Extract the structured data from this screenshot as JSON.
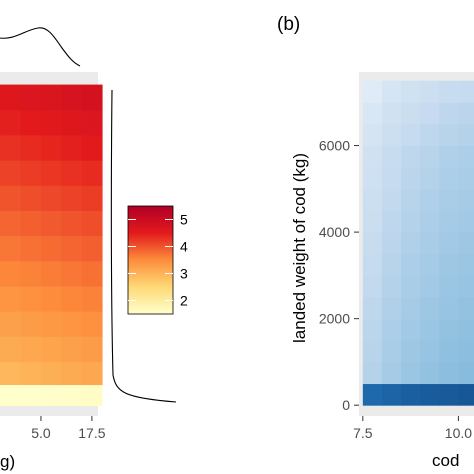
{
  "panel_b_label": "(b)",
  "chart_data": [
    {
      "type": "heatmap",
      "panel": "(a)",
      "palette": "YlOrRd",
      "x_ticks": [
        "5.0",
        "17.5"
      ],
      "xlabel_fragment": "g)",
      "xlim": [
        12.5,
        17.8
      ],
      "ylim": [
        -0.4,
        7.8
      ],
      "x_columns": [
        12.5,
        13.5,
        14.5,
        15.5,
        16.5,
        17.5
      ],
      "row_centers": [
        0.1,
        0.6,
        1.2,
        1.8,
        2.4,
        3.0,
        3.6,
        4.2,
        4.8,
        5.4,
        6.0,
        6.6,
        7.2
      ],
      "values": [
        [
          1.5,
          1.5,
          1.5,
          1.52,
          1.55,
          1.58
        ],
        [
          2.9,
          2.95,
          3.0,
          3.05,
          3.1,
          3.15
        ],
        [
          3.05,
          3.1,
          3.15,
          3.2,
          3.25,
          3.3
        ],
        [
          3.2,
          3.25,
          3.3,
          3.35,
          3.4,
          3.45
        ],
        [
          3.35,
          3.4,
          3.45,
          3.5,
          3.55,
          3.6
        ],
        [
          3.5,
          3.55,
          3.6,
          3.65,
          3.7,
          3.75
        ],
        [
          3.65,
          3.7,
          3.75,
          3.8,
          3.85,
          3.9
        ],
        [
          3.8,
          3.85,
          3.9,
          3.95,
          4.0,
          4.05
        ],
        [
          3.95,
          4.0,
          4.05,
          4.1,
          4.15,
          4.2
        ],
        [
          4.1,
          4.15,
          4.2,
          4.25,
          4.3,
          4.35
        ],
        [
          4.25,
          4.3,
          4.35,
          4.4,
          4.45,
          4.5
        ],
        [
          4.4,
          4.45,
          4.5,
          4.55,
          4.6,
          4.65
        ],
        [
          4.55,
          4.6,
          4.65,
          4.7,
          4.75,
          4.8
        ]
      ],
      "legend": {
        "ticks": [
          "2",
          "3",
          "4",
          "5"
        ],
        "min": 1.5,
        "max": 5.5
      },
      "grid": false
    },
    {
      "type": "heatmap",
      "panel": "(b)",
      "palette": "Blues",
      "ylabel": "landed weight of cod (kg)",
      "xlabel_fragment": "cod",
      "x_ticks": [
        "7.5",
        "10.0"
      ],
      "y_ticks": [
        "0",
        "2000",
        "4000",
        "6000"
      ],
      "xlim": [
        7.4,
        10.8
      ],
      "ylim": [
        -250,
        7700
      ],
      "x_columns": [
        7.75,
        8.25,
        8.75,
        9.25,
        9.75,
        10.25,
        10.75
      ],
      "row_centers": [
        250,
        750,
        1250,
        1750,
        2250,
        2750,
        3250,
        3750,
        4250,
        4750,
        5250,
        5750,
        6250,
        6750,
        7250
      ],
      "values": [
        [
          0.78,
          0.8,
          0.82,
          0.83,
          0.84,
          0.85,
          0.86
        ],
        [
          0.3,
          0.34,
          0.37,
          0.39,
          0.41,
          0.42,
          0.43
        ],
        [
          0.29,
          0.33,
          0.36,
          0.38,
          0.4,
          0.41,
          0.42
        ],
        [
          0.28,
          0.32,
          0.35,
          0.37,
          0.39,
          0.4,
          0.41
        ],
        [
          0.27,
          0.31,
          0.34,
          0.36,
          0.38,
          0.39,
          0.4
        ],
        [
          0.26,
          0.3,
          0.33,
          0.35,
          0.37,
          0.38,
          0.39
        ],
        [
          0.25,
          0.29,
          0.32,
          0.34,
          0.36,
          0.37,
          0.38
        ],
        [
          0.24,
          0.28,
          0.31,
          0.33,
          0.35,
          0.36,
          0.37
        ],
        [
          0.23,
          0.27,
          0.3,
          0.32,
          0.34,
          0.35,
          0.36
        ],
        [
          0.22,
          0.26,
          0.29,
          0.31,
          0.33,
          0.34,
          0.35
        ],
        [
          0.21,
          0.25,
          0.28,
          0.3,
          0.32,
          0.33,
          0.34
        ],
        [
          0.2,
          0.24,
          0.27,
          0.29,
          0.31,
          0.32,
          0.33
        ],
        [
          0.18,
          0.22,
          0.25,
          0.27,
          0.29,
          0.3,
          0.31
        ],
        [
          0.16,
          0.2,
          0.23,
          0.25,
          0.27,
          0.28,
          0.29
        ],
        [
          0.12,
          0.17,
          0.2,
          0.22,
          0.24,
          0.25,
          0.26
        ]
      ],
      "grid": false
    }
  ]
}
